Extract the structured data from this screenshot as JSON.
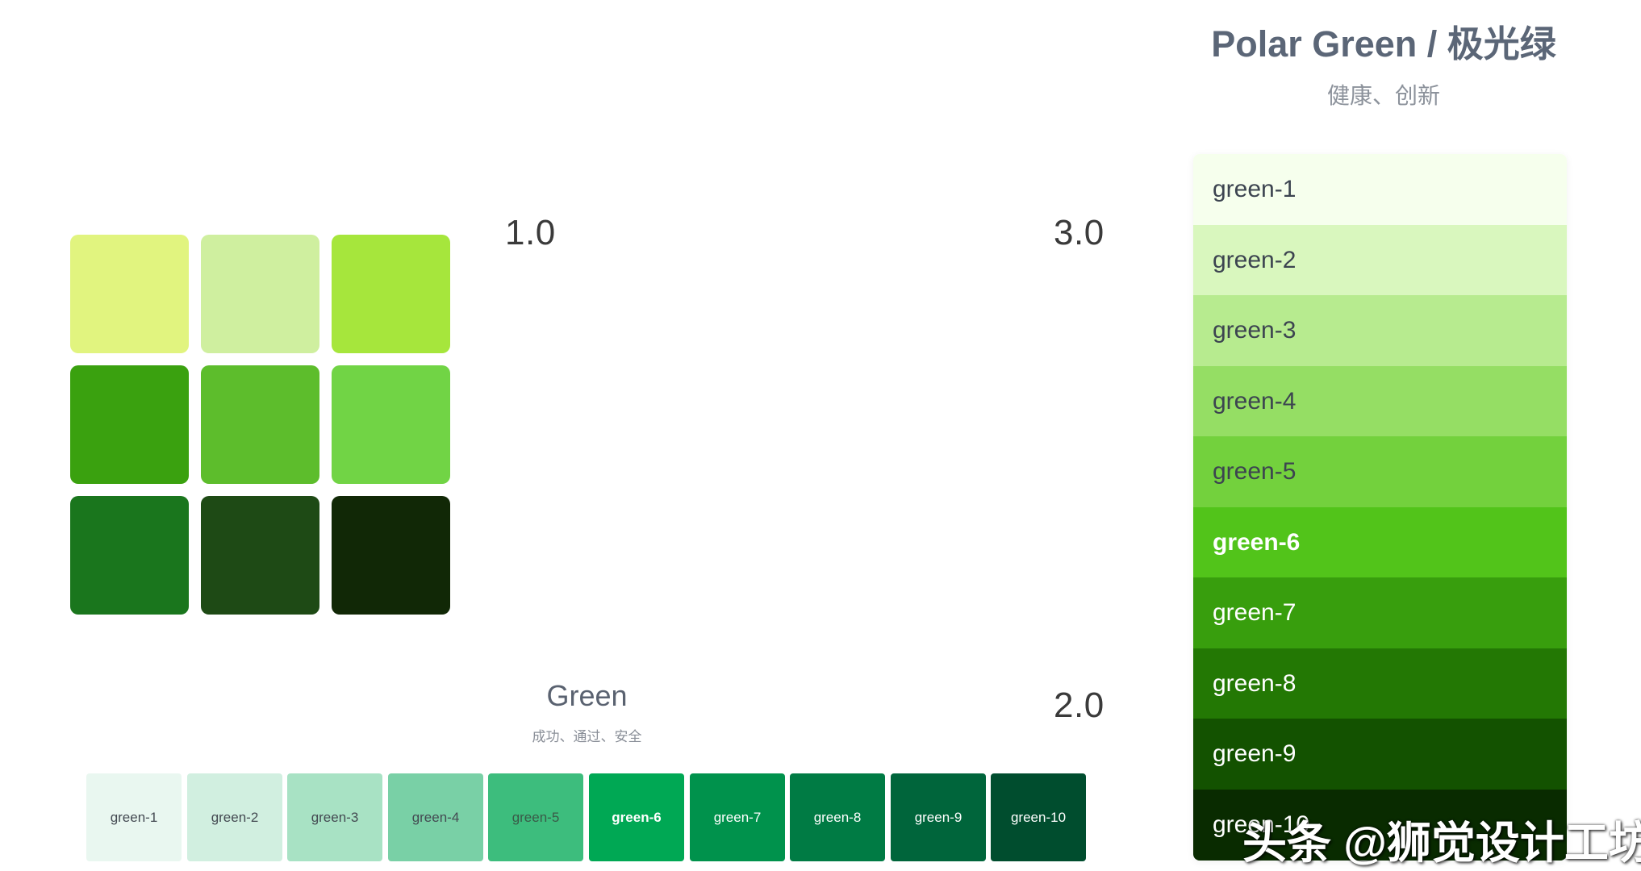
{
  "v1": {
    "label": "1.0",
    "swatches": [
      {
        "name": "v1-swatch-1",
        "color": "#e1f47f"
      },
      {
        "name": "v1-swatch-2",
        "color": "#cfef9f"
      },
      {
        "name": "v1-swatch-3",
        "color": "#a6e63c"
      },
      {
        "name": "v1-swatch-4",
        "color": "#3aa10f"
      },
      {
        "name": "v1-swatch-5",
        "color": "#5dbd2c"
      },
      {
        "name": "v1-swatch-6",
        "color": "#71d445"
      },
      {
        "name": "v1-swatch-7",
        "color": "#1a761d"
      },
      {
        "name": "v1-swatch-8",
        "color": "#1e4a15"
      },
      {
        "name": "v1-swatch-9",
        "color": "#112806"
      }
    ]
  },
  "v2": {
    "label": "2.0",
    "title": "Green",
    "subtitle": "成功、通过、安全",
    "chips": [
      {
        "label": "green-1",
        "color": "#e9f7f0",
        "text_color": "#444a52",
        "bold": false
      },
      {
        "label": "green-2",
        "color": "#d1efe0",
        "text_color": "#444a52",
        "bold": false
      },
      {
        "label": "green-3",
        "color": "#a8e2c4",
        "text_color": "#444a52",
        "bold": false
      },
      {
        "label": "green-4",
        "color": "#79d0a6",
        "text_color": "#444a52",
        "bold": false
      },
      {
        "label": "green-5",
        "color": "#3dbd7d",
        "text_color": "#3a5a48",
        "bold": false
      },
      {
        "label": "green-6",
        "color": "#00a854",
        "text_color": "#ffffff",
        "bold": true
      },
      {
        "label": "green-7",
        "color": "#00924c",
        "text_color": "#ffffff",
        "bold": false
      },
      {
        "label": "green-8",
        "color": "#007b44",
        "text_color": "#ffffff",
        "bold": false
      },
      {
        "label": "green-9",
        "color": "#00653b",
        "text_color": "#ffffff",
        "bold": false
      },
      {
        "label": "green-10",
        "color": "#004d2e",
        "text_color": "#ffffff",
        "bold": false
      }
    ]
  },
  "v3": {
    "label": "3.0",
    "title": "Polar Green / 极光绿",
    "subtitle": "健康、创新",
    "bands": [
      {
        "label": "green-1",
        "color": "#f6ffed",
        "text_color": "#3c4450",
        "bold": false
      },
      {
        "label": "green-2",
        "color": "#d9f7be",
        "text_color": "#3c4450",
        "bold": false
      },
      {
        "label": "green-3",
        "color": "#b7eb8f",
        "text_color": "#3c4450",
        "bold": false
      },
      {
        "label": "green-4",
        "color": "#95de64",
        "text_color": "#3c4450",
        "bold": false
      },
      {
        "label": "green-5",
        "color": "#73d13d",
        "text_color": "#3c4450",
        "bold": false
      },
      {
        "label": "green-6",
        "color": "#52c41a",
        "text_color": "#ffffff",
        "bold": true
      },
      {
        "label": "green-7",
        "color": "#389e0d",
        "text_color": "#ffffff",
        "bold": false
      },
      {
        "label": "green-8",
        "color": "#237804",
        "text_color": "#ffffff",
        "bold": false
      },
      {
        "label": "green-9",
        "color": "#135200",
        "text_color": "#ffffff",
        "bold": false
      },
      {
        "label": "green-10",
        "color": "#092b00",
        "text_color": "#ffffff",
        "bold": false
      }
    ]
  },
  "watermark": "头条 @狮觉设计工坊"
}
